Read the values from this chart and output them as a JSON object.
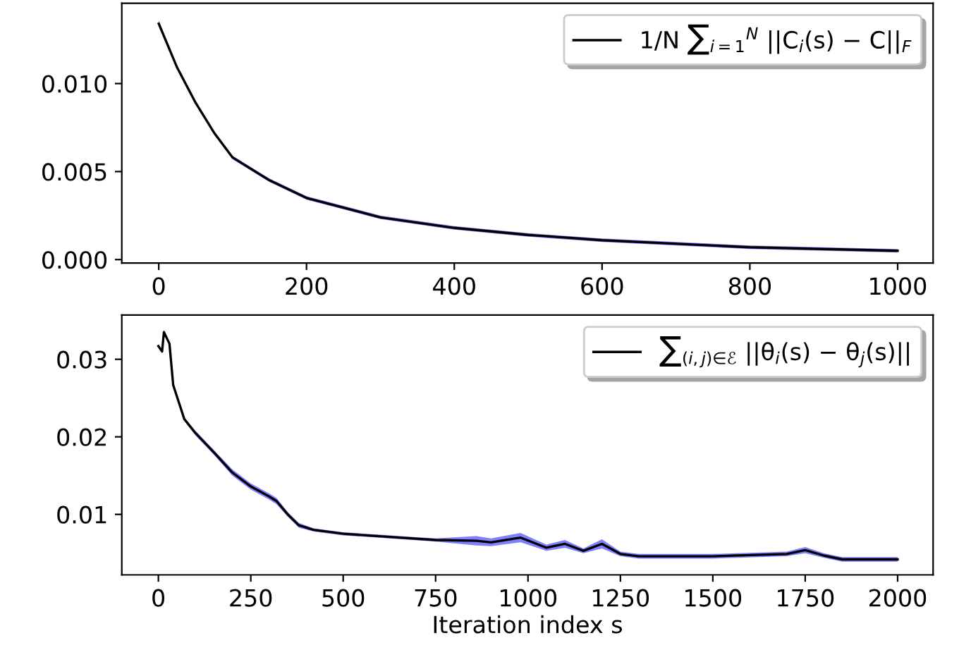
{
  "chart_data": [
    {
      "type": "line",
      "xlim": [
        -50,
        1048
      ],
      "ylim": [
        -0.0002,
        0.01456
      ],
      "xticks": [
        0,
        200,
        400,
        600,
        800,
        1000
      ],
      "yticks": [
        {
          "value": 0,
          "label": "0.000"
        },
        {
          "value": 0.005,
          "label": "0.005"
        },
        {
          "value": 0.01,
          "label": "0.010"
        }
      ],
      "legend": "top right",
      "grid": false,
      "series": [
        {
          "name": "1/N ∑$_{i=1}$$^{N}$ ||C$_{i}$(s) − C||$_{F}$",
          "color": "#000000",
          "x": [
            0,
            25,
            50,
            75,
            100,
            150,
            200,
            300,
            400,
            500,
            600,
            800,
            1000
          ],
          "values": [
            0.0134,
            0.0109,
            0.0089,
            0.0072,
            0.0058,
            0.0045,
            0.0035,
            0.0024,
            0.0018,
            0.0014,
            0.0011,
            0.0007,
            0.0005
          ],
          "lower": [
            0.0133,
            0.0108,
            0.0088,
            0.0071,
            0.0057,
            0.0044,
            0.0034,
            0.0023,
            0.0017,
            0.0013,
            0.001,
            0.0006,
            0.0004
          ],
          "upper": [
            0.0136,
            0.011,
            0.009,
            0.0073,
            0.0059,
            0.0046,
            0.0036,
            0.0025,
            0.0019,
            0.0015,
            0.0012,
            0.0008,
            0.0006
          ]
        }
      ]
    },
    {
      "type": "line",
      "xlabel": "Iteration index s",
      "xlim": [
        -99,
        2096
      ],
      "ylim": [
        0.0022,
        0.0357
      ],
      "xticks": [
        0,
        250,
        500,
        750,
        1000,
        1250,
        1500,
        1750,
        2000
      ],
      "yticks": [
        0.01,
        0.02,
        0.03
      ],
      "legend": "top right",
      "grid": false,
      "series": [
        {
          "name": "∑$_{(i,j)∈ℰ}$ ||θ$_{i}$(s) − θ$_{j}$(s)||",
          "color": "#000000",
          "x": [
            0,
            10,
            15,
            30,
            40,
            70,
            100,
            150,
            200,
            250,
            300,
            320,
            350,
            380,
            420,
            500,
            750,
            860,
            900,
            980,
            1050,
            1100,
            1150,
            1200,
            1250,
            1300,
            1500,
            1700,
            1750,
            1800,
            1850,
            2000
          ],
          "values": [
            0.0317,
            0.031,
            0.0335,
            0.032,
            0.0267,
            0.0223,
            0.0205,
            0.018,
            0.0154,
            0.0136,
            0.0123,
            0.0117,
            0.01,
            0.0086,
            0.008,
            0.0075,
            0.0067,
            0.0066,
            0.0064,
            0.007,
            0.0057,
            0.0062,
            0.0053,
            0.0062,
            0.0049,
            0.0046,
            0.0046,
            0.0049,
            0.0054,
            0.0047,
            0.0042,
            0.0042
          ],
          "lower": [
            0.0315,
            0.0308,
            0.0333,
            0.0318,
            0.0265,
            0.0221,
            0.0202,
            0.0177,
            0.015,
            0.0132,
            0.0119,
            0.0113,
            0.0097,
            0.0083,
            0.0078,
            0.0073,
            0.0065,
            0.006,
            0.0059,
            0.0064,
            0.0053,
            0.0057,
            0.005,
            0.0056,
            0.0046,
            0.0043,
            0.0043,
            0.0046,
            0.005,
            0.0044,
            0.0039,
            0.0039
          ],
          "upper": [
            0.0319,
            0.0312,
            0.0338,
            0.0322,
            0.0269,
            0.0225,
            0.0208,
            0.0183,
            0.0158,
            0.014,
            0.0127,
            0.0121,
            0.0103,
            0.0089,
            0.0082,
            0.0077,
            0.0069,
            0.0072,
            0.0069,
            0.0076,
            0.0061,
            0.0067,
            0.0056,
            0.0068,
            0.0052,
            0.0049,
            0.0049,
            0.0052,
            0.0058,
            0.005,
            0.0045,
            0.0045
          ]
        }
      ]
    }
  ]
}
